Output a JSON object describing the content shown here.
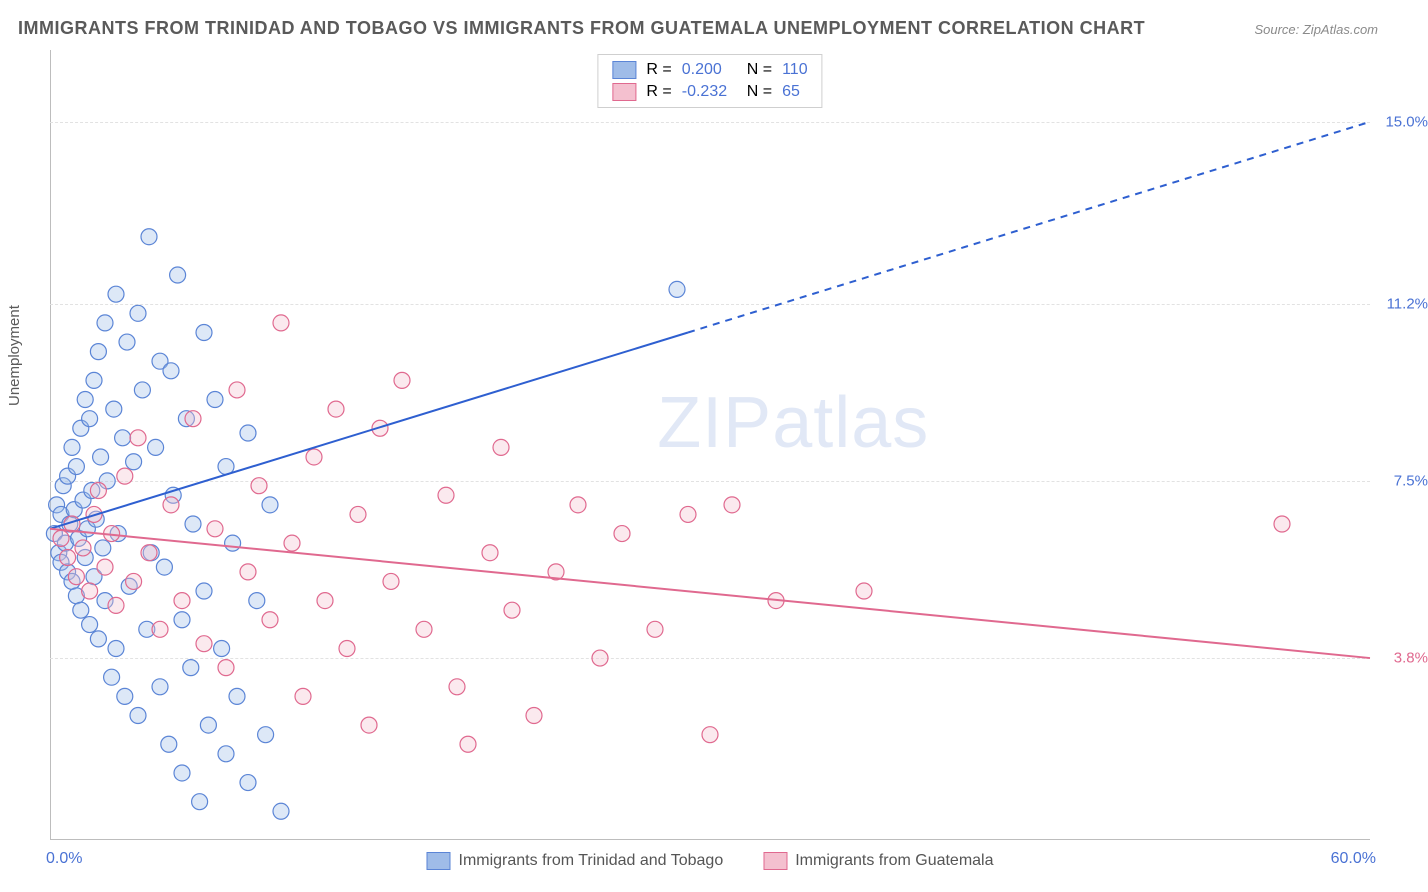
{
  "title": "IMMIGRANTS FROM TRINIDAD AND TOBAGO VS IMMIGRANTS FROM GUATEMALA UNEMPLOYMENT CORRELATION CHART",
  "source": "Source: ZipAtlas.com",
  "ylabel": "Unemployment",
  "watermark_left": "ZIP",
  "watermark_right": "atlas",
  "chart": {
    "type": "scatter",
    "xlim": [
      0,
      60
    ],
    "ylim": [
      0,
      16.5
    ],
    "x_ticks": [
      {
        "value": 0,
        "label": "0.0%"
      },
      {
        "value": 60,
        "label": "60.0%"
      }
    ],
    "y_ticks": [
      {
        "value": 3.8,
        "label": "3.8%",
        "color": "#e0698f"
      },
      {
        "value": 7.5,
        "label": "7.5%",
        "color": "#4a72d4"
      },
      {
        "value": 11.2,
        "label": "11.2%",
        "color": "#4a72d4"
      },
      {
        "value": 15.0,
        "label": "15.0%",
        "color": "#4a72d4"
      }
    ],
    "gridlines_y": [
      3.8,
      7.5,
      11.2,
      15.0
    ],
    "background_color": "#ffffff",
    "grid_color": "#e2e2e2",
    "series": [
      {
        "id": "trinidad",
        "label": "Immigrants from Trinidad and Tobago",
        "fill_color": "#9fbce8",
        "stroke_color": "#5b85d6",
        "R": "0.200",
        "N": "110",
        "trend": {
          "solid": {
            "x1": 0,
            "y1": 6.5,
            "x2": 29,
            "y2": 10.6
          },
          "dashed": {
            "x1": 29,
            "y1": 10.6,
            "x2": 60,
            "y2": 15.0
          },
          "line_color": "#2e5fd0",
          "line_width": 2
        },
        "points": [
          [
            0.2,
            6.4
          ],
          [
            0.3,
            7.0
          ],
          [
            0.4,
            6.0
          ],
          [
            0.5,
            6.8
          ],
          [
            0.5,
            5.8
          ],
          [
            0.6,
            7.4
          ],
          [
            0.7,
            6.2
          ],
          [
            0.8,
            5.6
          ],
          [
            0.8,
            7.6
          ],
          [
            0.9,
            6.6
          ],
          [
            1.0,
            8.2
          ],
          [
            1.0,
            5.4
          ],
          [
            1.1,
            6.9
          ],
          [
            1.2,
            7.8
          ],
          [
            1.2,
            5.1
          ],
          [
            1.3,
            6.3
          ],
          [
            1.4,
            8.6
          ],
          [
            1.4,
            4.8
          ],
          [
            1.5,
            7.1
          ],
          [
            1.6,
            9.2
          ],
          [
            1.6,
            5.9
          ],
          [
            1.7,
            6.5
          ],
          [
            1.8,
            8.8
          ],
          [
            1.8,
            4.5
          ],
          [
            1.9,
            7.3
          ],
          [
            2.0,
            9.6
          ],
          [
            2.0,
            5.5
          ],
          [
            2.1,
            6.7
          ],
          [
            2.2,
            10.2
          ],
          [
            2.2,
            4.2
          ],
          [
            2.3,
            8.0
          ],
          [
            2.4,
            6.1
          ],
          [
            2.5,
            10.8
          ],
          [
            2.5,
            5.0
          ],
          [
            2.6,
            7.5
          ],
          [
            2.8,
            3.4
          ],
          [
            2.9,
            9.0
          ],
          [
            3.0,
            11.4
          ],
          [
            3.0,
            4.0
          ],
          [
            3.1,
            6.4
          ],
          [
            3.3,
            8.4
          ],
          [
            3.4,
            3.0
          ],
          [
            3.5,
            10.4
          ],
          [
            3.6,
            5.3
          ],
          [
            3.8,
            7.9
          ],
          [
            4.0,
            11.0
          ],
          [
            4.0,
            2.6
          ],
          [
            4.2,
            9.4
          ],
          [
            4.4,
            4.4
          ],
          [
            4.5,
            12.6
          ],
          [
            4.6,
            6.0
          ],
          [
            4.8,
            8.2
          ],
          [
            5.0,
            3.2
          ],
          [
            5.0,
            10.0
          ],
          [
            5.2,
            5.7
          ],
          [
            5.4,
            2.0
          ],
          [
            5.5,
            9.8
          ],
          [
            5.6,
            7.2
          ],
          [
            5.8,
            11.8
          ],
          [
            6.0,
            4.6
          ],
          [
            6.0,
            1.4
          ],
          [
            6.2,
            8.8
          ],
          [
            6.4,
            3.6
          ],
          [
            6.5,
            6.6
          ],
          [
            6.8,
            0.8
          ],
          [
            7.0,
            10.6
          ],
          [
            7.0,
            5.2
          ],
          [
            7.2,
            2.4
          ],
          [
            7.5,
            9.2
          ],
          [
            7.8,
            4.0
          ],
          [
            8.0,
            7.8
          ],
          [
            8.0,
            1.8
          ],
          [
            8.3,
            6.2
          ],
          [
            8.5,
            3.0
          ],
          [
            9.0,
            8.5
          ],
          [
            9.0,
            1.2
          ],
          [
            9.4,
            5.0
          ],
          [
            9.8,
            2.2
          ],
          [
            10.0,
            7.0
          ],
          [
            10.5,
            0.6
          ],
          [
            28.5,
            11.5
          ]
        ]
      },
      {
        "id": "guatemala",
        "label": "Immigrants from Guatemala",
        "fill_color": "#f4c0cf",
        "stroke_color": "#e0698f",
        "R": "-0.232",
        "N": "65",
        "trend": {
          "solid": {
            "x1": 0,
            "y1": 6.5,
            "x2": 60,
            "y2": 3.8
          },
          "line_color": "#e0698f",
          "line_width": 2
        },
        "points": [
          [
            0.5,
            6.3
          ],
          [
            0.8,
            5.9
          ],
          [
            1.0,
            6.6
          ],
          [
            1.2,
            5.5
          ],
          [
            1.5,
            6.1
          ],
          [
            1.8,
            5.2
          ],
          [
            2.0,
            6.8
          ],
          [
            2.2,
            7.3
          ],
          [
            2.5,
            5.7
          ],
          [
            2.8,
            6.4
          ],
          [
            3.0,
            4.9
          ],
          [
            3.4,
            7.6
          ],
          [
            3.8,
            5.4
          ],
          [
            4.0,
            8.4
          ],
          [
            4.5,
            6.0
          ],
          [
            5.0,
            4.4
          ],
          [
            5.5,
            7.0
          ],
          [
            6.0,
            5.0
          ],
          [
            6.5,
            8.8
          ],
          [
            7.0,
            4.1
          ],
          [
            7.5,
            6.5
          ],
          [
            8.0,
            3.6
          ],
          [
            8.5,
            9.4
          ],
          [
            9.0,
            5.6
          ],
          [
            9.5,
            7.4
          ],
          [
            10.0,
            4.6
          ],
          [
            10.5,
            10.8
          ],
          [
            11.0,
            6.2
          ],
          [
            11.5,
            3.0
          ],
          [
            12.0,
            8.0
          ],
          [
            12.5,
            5.0
          ],
          [
            13.0,
            9.0
          ],
          [
            13.5,
            4.0
          ],
          [
            14.0,
            6.8
          ],
          [
            14.5,
            2.4
          ],
          [
            15.0,
            8.6
          ],
          [
            15.5,
            5.4
          ],
          [
            16.0,
            9.6
          ],
          [
            17.0,
            4.4
          ],
          [
            18.0,
            7.2
          ],
          [
            18.5,
            3.2
          ],
          [
            19.0,
            2.0
          ],
          [
            20.0,
            6.0
          ],
          [
            20.5,
            8.2
          ],
          [
            21.0,
            4.8
          ],
          [
            22.0,
            2.6
          ],
          [
            23.0,
            5.6
          ],
          [
            24.0,
            7.0
          ],
          [
            25.0,
            3.8
          ],
          [
            26.0,
            6.4
          ],
          [
            27.5,
            4.4
          ],
          [
            29.0,
            6.8
          ],
          [
            30.0,
            2.2
          ],
          [
            31.0,
            7.0
          ],
          [
            33.0,
            5.0
          ],
          [
            37.0,
            5.2
          ],
          [
            56.0,
            6.6
          ]
        ]
      }
    ]
  },
  "legend_top": {
    "rows": [
      {
        "swatch_fill": "#9fbce8",
        "swatch_border": "#5b85d6",
        "r_label": "R =",
        "r_val": "0.200",
        "n_label": "N =",
        "n_val": "110",
        "val_color": "#4a72d4"
      },
      {
        "swatch_fill": "#f4c0cf",
        "swatch_border": "#e0698f",
        "r_label": "R =",
        "r_val": "-0.232",
        "n_label": "N =",
        "n_val": "65",
        "val_color": "#4a72d4"
      }
    ]
  },
  "marker_radius": 8
}
